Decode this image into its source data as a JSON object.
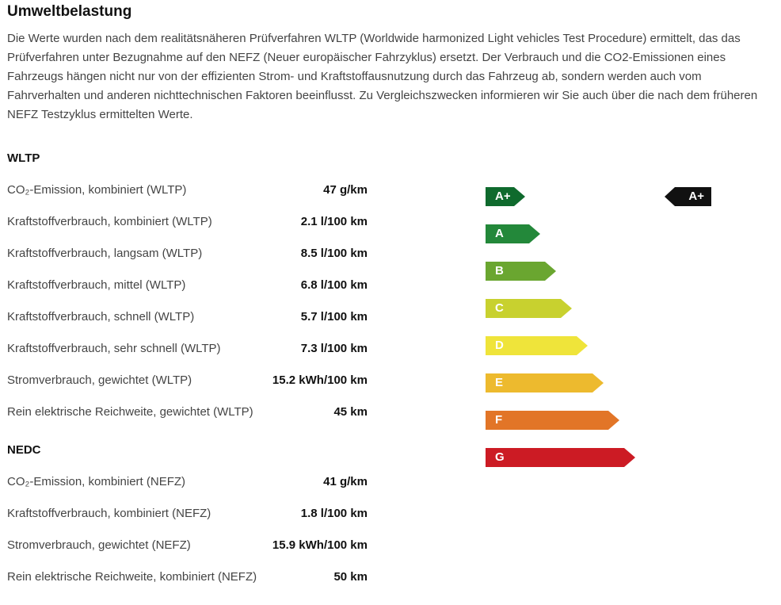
{
  "title": "Umweltbelastung",
  "intro": "Die Werte wurden nach dem realitätsnäheren Prüfverfahren WLTP (Worldwide harmonized Light vehicles Test Procedure) ermittelt, das das Prüfverfahren unter Bezugnahme auf den NEFZ (Neuer europäischer Fahrzyklus) ersetzt. Der Verbrauch und die CO2-Emissionen eines Fahrzeugs hängen nicht nur von der effizienten Strom- und Kraftstoffausnutzung durch das Fahrzeug ab, sondern werden auch vom Fahrverhalten und anderen nichttechnischen Faktoren beeinflusst. Zu Vergleichszwecken informieren wir Sie auch über die nach dem früheren NEFZ Testzyklus ermittelten Werte.",
  "wltp": {
    "heading": "WLTP",
    "rows": [
      {
        "label": "CO₂-Emission, kombiniert (WLTP)",
        "value": "47 g/km"
      },
      {
        "label": "Kraftstoffverbrauch, kombiniert (WLTP)",
        "value": "2.1 l/100 km"
      },
      {
        "label": "Kraftstoffverbrauch, langsam (WLTP)",
        "value": "8.5 l/100 km"
      },
      {
        "label": "Kraftstoffverbrauch, mittel (WLTP)",
        "value": "6.8 l/100 km"
      },
      {
        "label": "Kraftstoffverbrauch, schnell (WLTP)",
        "value": "5.7 l/100 km"
      },
      {
        "label": "Kraftstoffverbrauch, sehr schnell (WLTP)",
        "value": "7.3 l/100 km"
      },
      {
        "label": "Stromverbrauch, gewichtet (WLTP)",
        "value": "15.2 kWh/100 km"
      },
      {
        "label": "Rein elektrische Reichweite, gewichtet (WLTP)",
        "value": "45 km"
      }
    ]
  },
  "nedc": {
    "heading": "NEDC",
    "rows": [
      {
        "label": "CO₂-Emission, kombiniert (NEFZ)",
        "value": "41 g/km"
      },
      {
        "label": "Kraftstoffverbrauch, kombiniert (NEFZ)",
        "value": "1.8 l/100 km"
      },
      {
        "label": "Stromverbrauch, gewichtet (NEFZ)",
        "value": "15.9 kWh/100 km"
      },
      {
        "label": "Rein elektrische Reichweite, kombiniert (NEFZ)",
        "value": "50 km"
      }
    ]
  },
  "efficiency": {
    "classes": [
      {
        "label": "A+",
        "color": "#0f6a2d"
      },
      {
        "label": "A",
        "color": "#23883a"
      },
      {
        "label": "B",
        "color": "#6aa630"
      },
      {
        "label": "C",
        "color": "#c8d12f"
      },
      {
        "label": "D",
        "color": "#efe43a"
      },
      {
        "label": "E",
        "color": "#edba2e"
      },
      {
        "label": "F",
        "color": "#e27527"
      },
      {
        "label": "G",
        "color": "#cc1b24"
      }
    ],
    "current": "A+"
  }
}
